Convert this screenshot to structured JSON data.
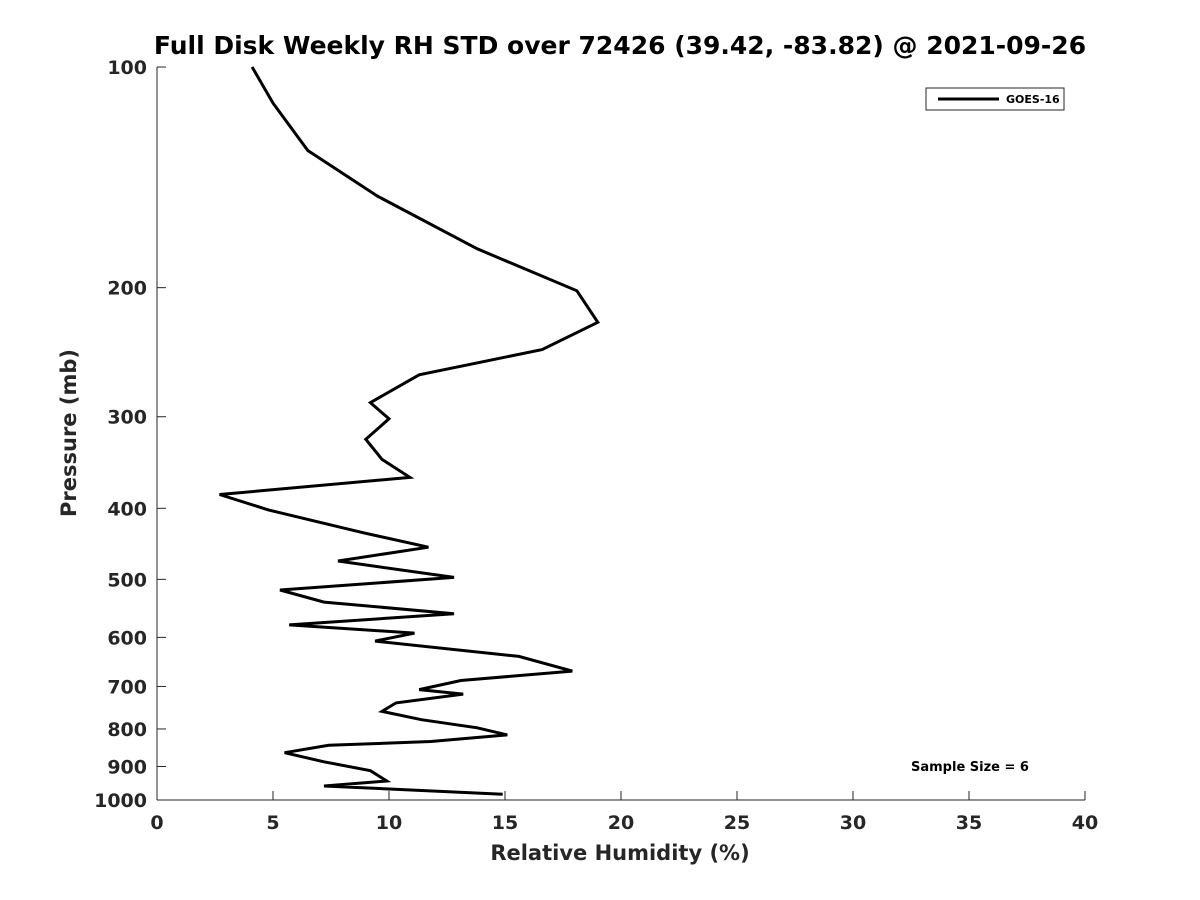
{
  "chart_data": {
    "type": "line",
    "title": "Full Disk Weekly RH STD over 72426 (39.42, -83.82) @ 2021-09-26",
    "xlabel": "Relative Humidity (%)",
    "ylabel": "Pressure (mb)",
    "xlim": [
      0,
      40
    ],
    "ylim": [
      100,
      1000
    ],
    "yscale": "log",
    "y_reversed": true,
    "grid": false,
    "legend_location": "top-right",
    "xticks": [
      0,
      5,
      10,
      15,
      20,
      25,
      30,
      35,
      40
    ],
    "yticks": [
      100,
      200,
      300,
      400,
      500,
      600,
      700,
      800,
      900,
      1000
    ],
    "annotation": "Sample Size = 6",
    "series": [
      {
        "name": "GOES-16",
        "color": "#000000",
        "x": [
          4.1,
          5.0,
          6.5,
          9.5,
          13.8,
          18.1,
          19.0,
          16.6,
          11.3,
          9.2,
          10.0,
          9.0,
          9.7,
          10.9,
          2.7,
          4.8,
          8.9,
          11.7,
          7.8,
          12.8,
          5.3,
          7.2,
          12.8,
          5.7,
          11.1,
          9.4,
          15.6,
          17.9,
          13.1,
          11.3,
          13.2,
          10.3,
          9.7,
          11.4,
          13.8,
          15.1,
          11.8,
          7.4,
          5.5,
          7.2,
          9.2,
          9.9,
          7.2,
          14.9
        ],
        "y": [
          100,
          112,
          130,
          150,
          177,
          202,
          223,
          243,
          263,
          287,
          302,
          322,
          343,
          363,
          383,
          402,
          432,
          452,
          472,
          497,
          517,
          537,
          557,
          577,
          592,
          607,
          637,
          667,
          687,
          707,
          717,
          737,
          757,
          777,
          797,
          815,
          832,
          842,
          862,
          887,
          912,
          942,
          957,
          982
        ]
      }
    ]
  }
}
